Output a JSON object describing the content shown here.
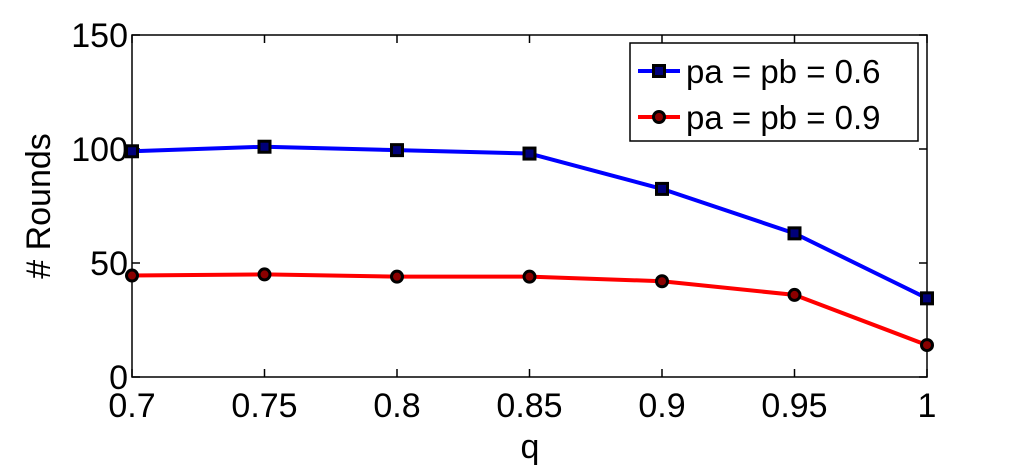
{
  "chart_data": {
    "type": "line",
    "title": "",
    "xlabel": "q",
    "ylabel": "# Rounds",
    "x": [
      0.7,
      0.75,
      0.8,
      0.85,
      0.9,
      0.95,
      1
    ],
    "x_tick_labels": [
      "0.7",
      "0.75",
      "0.8",
      "0.85",
      "0.9",
      "0.95",
      "1"
    ],
    "xlim": [
      0.7,
      1.0
    ],
    "ylim": [
      0,
      150
    ],
    "y_ticks": [
      0,
      50,
      100,
      150
    ],
    "y_tick_labels": [
      "0",
      "50",
      "100",
      "150"
    ],
    "grid": false,
    "legend_position": "top-right",
    "series": [
      {
        "name": "pa = pb = 0.6",
        "color": "#0000ff",
        "marker": "square",
        "values": [
          99,
          101,
          99.5,
          98,
          82.5,
          63,
          34.5
        ]
      },
      {
        "name": "pa = pb = 0.9",
        "color": "#ff0000",
        "marker": "circle",
        "values": [
          44.5,
          45,
          44,
          44,
          42,
          36,
          14
        ]
      }
    ]
  }
}
